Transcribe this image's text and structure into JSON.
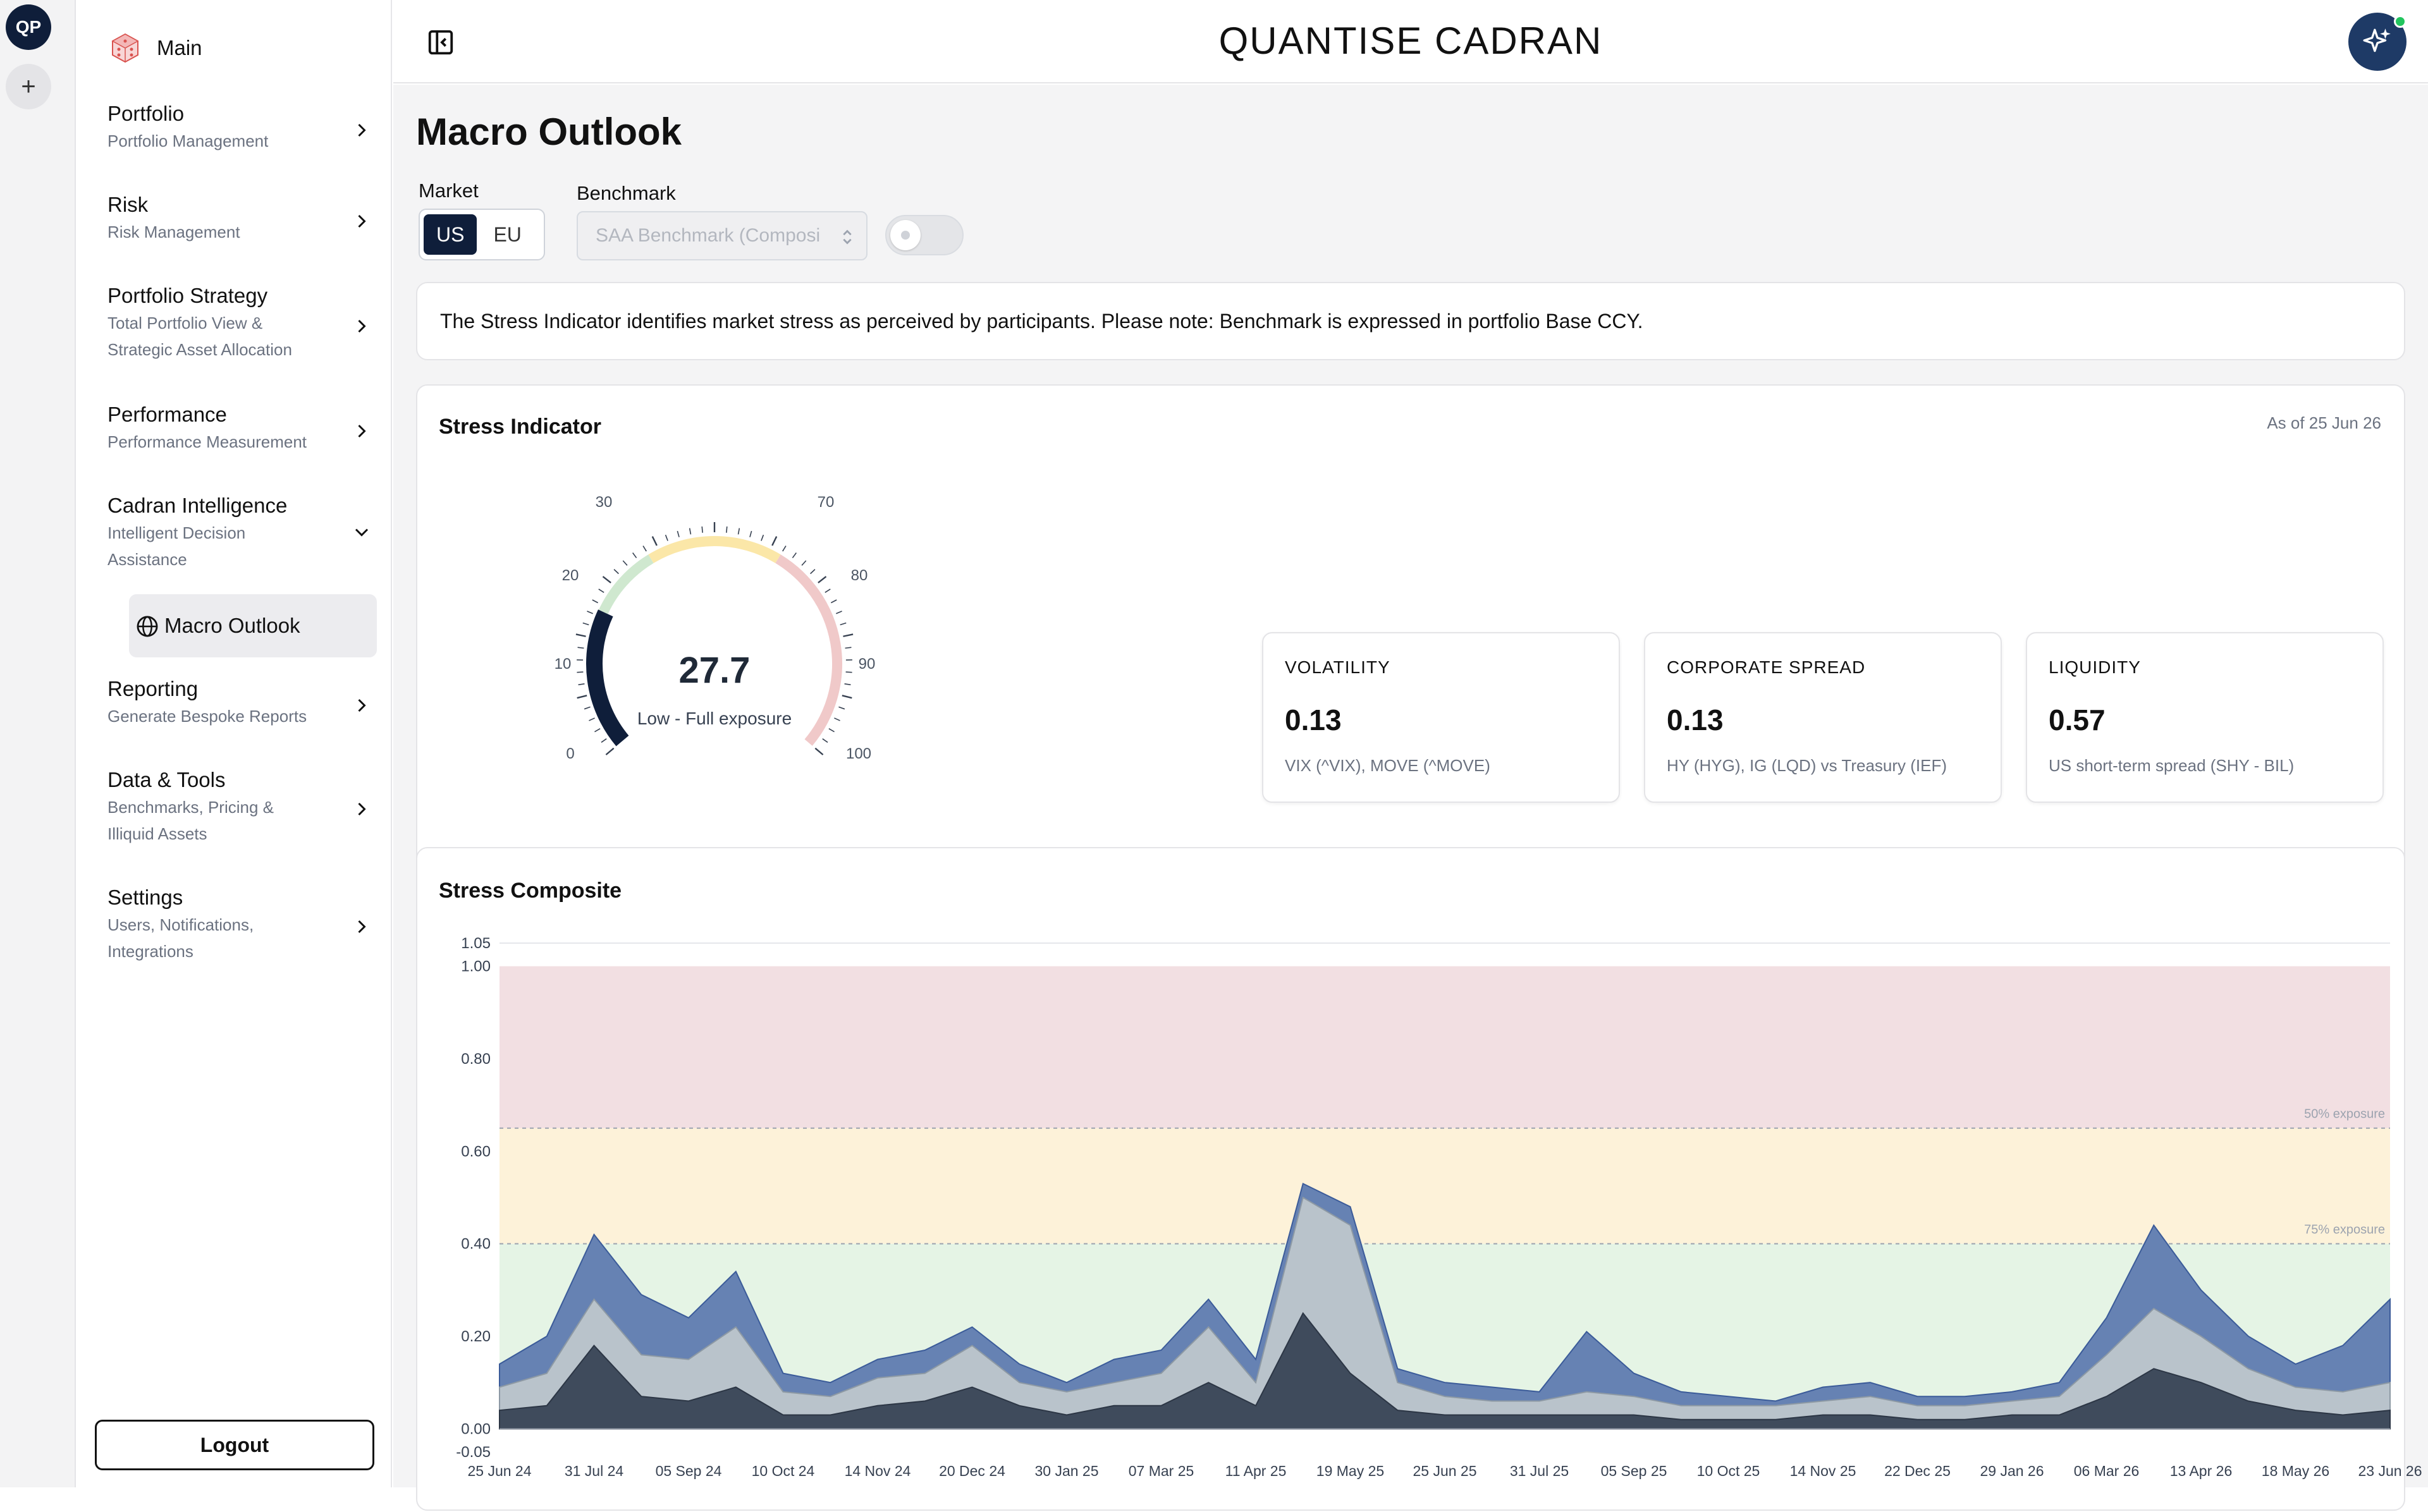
{
  "rail": {
    "avatar": "QP",
    "add": "+"
  },
  "sidebar": {
    "main_label": "Main",
    "items": [
      {
        "title": "Portfolio",
        "sub": "Portfolio Management"
      },
      {
        "title": "Risk",
        "sub": "Risk Management"
      },
      {
        "title": "Portfolio Strategy",
        "sub": "Total Portfolio View &",
        "sub2": "Strategic Asset Allocation"
      },
      {
        "title": "Performance",
        "sub": "Performance Measurement"
      },
      {
        "title": "Cadran Intelligence",
        "sub": "Intelligent Decision",
        "sub2": "Assistance"
      },
      {
        "title": "Reporting",
        "sub": "Generate Bespoke Reports"
      },
      {
        "title": "Data & Tools",
        "sub": "Benchmarks, Pricing &",
        "sub2": "Illiquid Assets"
      },
      {
        "title": "Settings",
        "sub": "Users, Notifications,",
        "sub2": "Integrations"
      }
    ],
    "active_child": "Macro Outlook",
    "logout": "Logout"
  },
  "header": {
    "title": "QUANTISE CADRAN"
  },
  "page": {
    "title": "Macro Outlook",
    "market_label": "Market",
    "market_options": [
      "US",
      "EU"
    ],
    "market_selected": "US",
    "benchmark_label": "Benchmark",
    "benchmark_value": "SAA Benchmark (Composi",
    "toggle_on": false,
    "notice": "The Stress Indicator identifies market stress as perceived by participants. Please note: Benchmark is expressed in portfolio Base CCY."
  },
  "stress_indicator": {
    "title": "Stress Indicator",
    "as_of": "As of 25 Jun 26",
    "value": "27.7",
    "value_num": 27.7,
    "label": "Low - Full exposure",
    "ticks": [
      "0",
      "10",
      "20",
      "30",
      "70",
      "80",
      "90",
      "100"
    ],
    "zone_colors": {
      "low": "#0f1e3a",
      "green": "#cfe8cf",
      "yellow": "#fbe7a8",
      "red": "#f0c9c9"
    },
    "metrics": [
      {
        "name": "VOLATILITY",
        "value": "0.13",
        "desc": "VIX (^VIX), MOVE (^MOVE)"
      },
      {
        "name": "CORPORATE SPREAD",
        "value": "0.13",
        "desc": "HY (HYG), IG (LQD) vs Treasury (IEF)"
      },
      {
        "name": "LIQUIDITY",
        "value": "0.57",
        "desc": "US short-term spread (SHY - BIL)"
      }
    ]
  },
  "composite": {
    "title": "Stress Composite",
    "band_labels": {
      "fifty": "50% exposure",
      "seventy_five": "75% exposure"
    },
    "colors": {
      "red_band": "#f2dfe2",
      "yellow_band": "#fdf2d9",
      "green_band": "#e5f4e5",
      "top": "#6682b3",
      "mid": "#b9c3cb",
      "base": "#3f4b5c"
    }
  },
  "chart_data": {
    "type": "area",
    "title": "Stress Composite",
    "xlabel": "",
    "ylabel": "",
    "ylim": [
      -0.05,
      1.05
    ],
    "yticks": [
      "1.05",
      "1.00",
      "0.80",
      "0.60",
      "0.40",
      "0.20",
      "0.00",
      "-0.05"
    ],
    "x_ticks": [
      "25 Jun 24",
      "31 Jul 24",
      "05 Sep 24",
      "10 Oct 24",
      "14 Nov 24",
      "20 Dec 24",
      "30 Jan 25",
      "07 Mar 25",
      "11 Apr 25",
      "19 May 25",
      "25 Jun 25",
      "31 Jul 25",
      "05 Sep 25",
      "10 Oct 25",
      "14 Nov 25",
      "22 Dec 25",
      "29 Jan 26",
      "06 Mar 26",
      "13 Apr 26",
      "18 May 26",
      "23 Jun 26"
    ],
    "thresholds": [
      0.65,
      0.4
    ],
    "series": [
      {
        "values": [
          0.14,
          0.2,
          0.42,
          0.29,
          0.24,
          0.34,
          0.12,
          0.1,
          0.15,
          0.17,
          0.22,
          0.14,
          0.1,
          0.15,
          0.17,
          0.28,
          0.15,
          0.53,
          0.48,
          0.13,
          0.1,
          0.09,
          0.08,
          0.21,
          0.12,
          0.08,
          0.07,
          0.06,
          0.09,
          0.1,
          0.07,
          0.07,
          0.08,
          0.1,
          0.24,
          0.44,
          0.3,
          0.2,
          0.14,
          0.18,
          0.28
        ]
      },
      {
        "values": [
          0.09,
          0.12,
          0.28,
          0.16,
          0.15,
          0.22,
          0.08,
          0.07,
          0.11,
          0.12,
          0.18,
          0.1,
          0.08,
          0.1,
          0.12,
          0.22,
          0.1,
          0.5,
          0.44,
          0.1,
          0.07,
          0.06,
          0.06,
          0.08,
          0.07,
          0.05,
          0.05,
          0.05,
          0.06,
          0.07,
          0.05,
          0.05,
          0.06,
          0.07,
          0.16,
          0.26,
          0.2,
          0.13,
          0.09,
          0.08,
          0.1
        ]
      },
      {
        "values": [
          0.04,
          0.05,
          0.18,
          0.07,
          0.06,
          0.09,
          0.03,
          0.03,
          0.05,
          0.06,
          0.09,
          0.05,
          0.03,
          0.05,
          0.05,
          0.1,
          0.05,
          0.25,
          0.12,
          0.04,
          0.03,
          0.03,
          0.03,
          0.03,
          0.03,
          0.02,
          0.02,
          0.02,
          0.03,
          0.03,
          0.02,
          0.02,
          0.03,
          0.03,
          0.07,
          0.13,
          0.1,
          0.06,
          0.04,
          0.03,
          0.04
        ]
      }
    ]
  }
}
